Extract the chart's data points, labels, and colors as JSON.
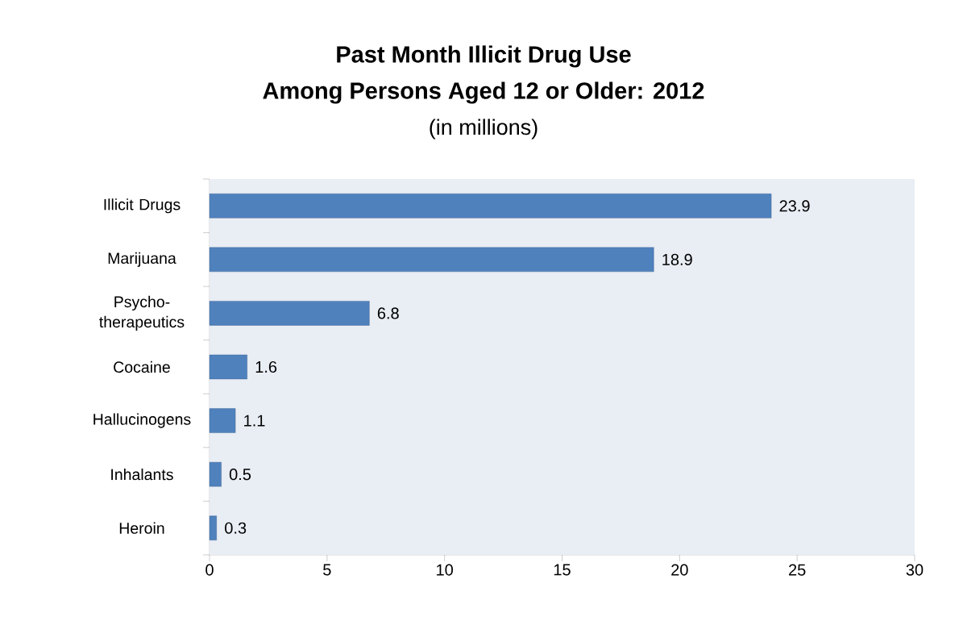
{
  "chart_data": {
    "type": "bar",
    "orientation": "horizontal",
    "title": "Past Month Illicit Drug Use",
    "subtitle": "Among Persons Aged 12 or Older: 2012",
    "annotations": [
      "(in millions)"
    ],
    "categories": [
      "Illicit Drugs",
      "Marijuana",
      "Psycho-therapeutics",
      "Cocaine",
      "Hallucinogens",
      "Inhalants",
      "Heroin"
    ],
    "values": [
      23.9,
      18.9,
      6.8,
      1.6,
      1.1,
      0.5,
      0.3
    ],
    "color": "#4f81bd",
    "data_labels": true,
    "xlim": [
      0,
      30
    ],
    "xticks": [
      0,
      5,
      10,
      15,
      20,
      25,
      30
    ]
  }
}
